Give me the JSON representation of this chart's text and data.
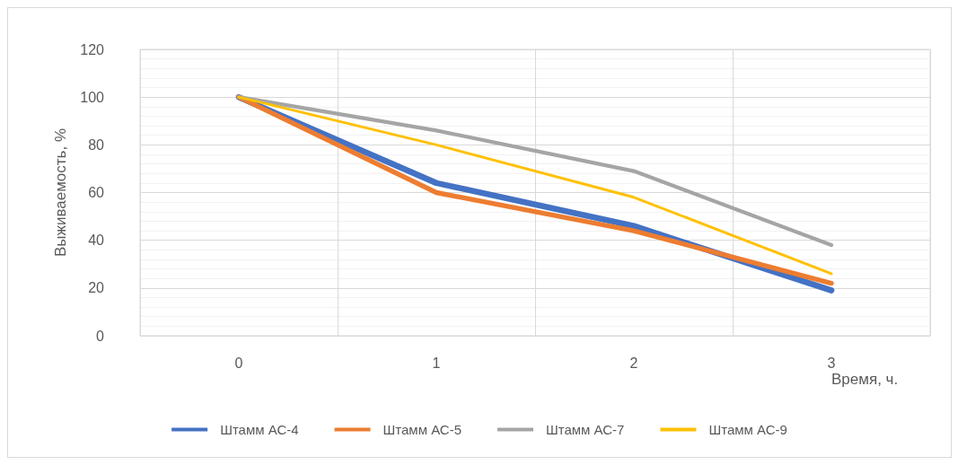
{
  "chart_data": {
    "type": "line",
    "xlabel": "Время, ч.",
    "ylabel": "Выживаемость, %",
    "categories": [
      "0",
      "1",
      "2",
      "3"
    ],
    "series": [
      {
        "name": "Штамм АС-4",
        "color": "#4472c4",
        "values": [
          100,
          64,
          46,
          19
        ]
      },
      {
        "name": "Штамм АС-5",
        "color": "#ed7d31",
        "values": [
          100,
          60,
          44,
          22
        ]
      },
      {
        "name": "Штамм АС-7",
        "color": "#a5a5a5",
        "values": [
          100,
          86,
          69,
          38
        ]
      },
      {
        "name": "Штамм АС-9",
        "color": "#ffc000",
        "values": [
          100,
          80,
          58,
          26
        ]
      }
    ],
    "ylim": [
      0,
      120
    ],
    "yticks": [
      0,
      20,
      40,
      60,
      80,
      100,
      120
    ],
    "grid": true,
    "legend": "bottom",
    "marker": "none",
    "line_style": "solid"
  }
}
